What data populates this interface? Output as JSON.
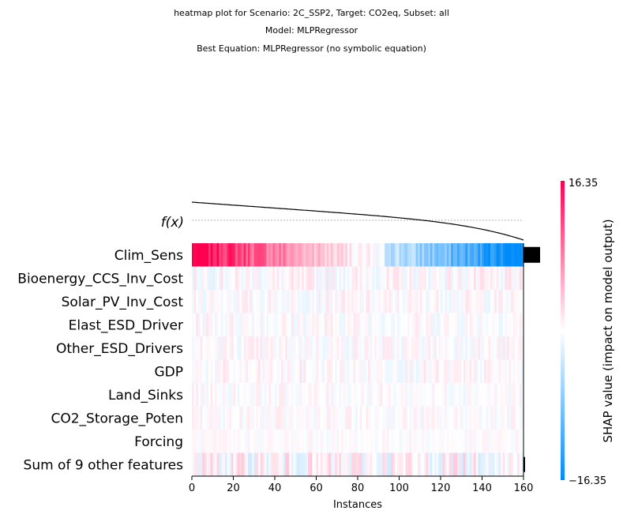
{
  "title_lines": [
    "heatmap plot for Scenario: 2C_SSP2, Target: CO2eq, Subset: all",
    "Model: MLPRegressor",
    "Best Equation: MLPRegressor (no symbolic equation)"
  ],
  "chart_data": {
    "type": "heatmap",
    "xlabel": "Instances",
    "fx_label": "f(x)",
    "x_ticks": [
      0,
      20,
      40,
      60,
      80,
      100,
      120,
      140,
      160
    ],
    "xlim": [
      0,
      160
    ],
    "n_instances": 160,
    "features": [
      "Clim_Sens",
      "Bioenergy_CCS_Inv_Cost",
      "Solar_PV_Inv_Cost",
      "Elast_ESD_Driver",
      "Other_ESD_Drivers",
      "GDP",
      "Land_Sinks",
      "CO2_Storage_Poten",
      "Forcing",
      "Sum of 9 other features"
    ],
    "feature_strength": [
      1.0,
      0.12,
      0.1,
      0.1,
      0.1,
      0.1,
      0.08,
      0.08,
      0.06,
      0.2
    ],
    "importance_bars": [
      1.0,
      0.0,
      0.0,
      0.0,
      0.0,
      0.0,
      0.0,
      0.0,
      0.0,
      0.12
    ],
    "colorbar": {
      "max_label": "16.35",
      "min_label": "−16.35",
      "label": "SHAP value (impact on model output)",
      "max": 16.35,
      "min": -16.35
    },
    "colors": {
      "positive": "#ff0051",
      "negative": "#008bfb",
      "neutral": "#ffffff"
    }
  }
}
